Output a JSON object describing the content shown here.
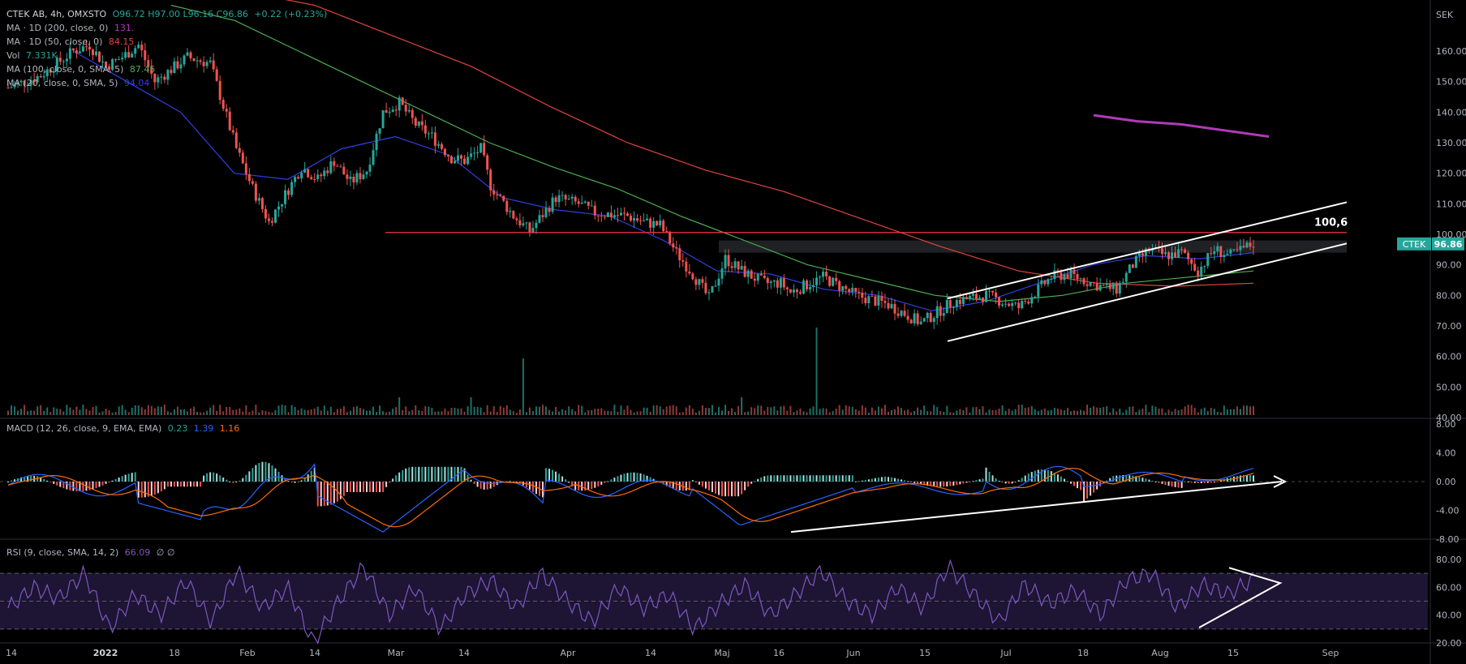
{
  "main_legend": {
    "symbol": "CTEK AB, 4h, OMXSTO",
    "ohlc": "O96.72 H97.00 L96.16 C96.86",
    "change": "+0.22 (+0.23%)",
    "indicators": [
      {
        "label": "MA · 1D (200, close, 0)",
        "value": "131.",
        "color": "#b03ab8"
      },
      {
        "label": "MA · 1D (50, close, 0)",
        "value": "84.15",
        "color": "#e0443e"
      },
      {
        "label": "Vol",
        "value": "7.331K",
        "color": "#26a69a"
      },
      {
        "label": "MA (100, close, 0, SMA, 5)",
        "value": "87.45",
        "color": "#4caf50"
      },
      {
        "label": "MA (20, close, 0, SMA, 5)",
        "value": "94.04",
        "color": "#3040e0"
      }
    ]
  },
  "macd_legend": {
    "label": "MACD (12, 26, close, 9, EMA, EMA)",
    "hist": "0.23",
    "macd": "1.39",
    "signal": "1.16"
  },
  "rsi_legend": {
    "label": "RSI (9, close, SMA, 14, 2)",
    "value": "66.09",
    "extra": "∅ ∅"
  },
  "currency": "SEK",
  "price_tag": {
    "symbol": "CTEK",
    "price": "96.86"
  },
  "annotation": "100,6",
  "colors": {
    "up": "#26a69a",
    "down": "#ef5350",
    "ma20": "#3040e0",
    "ma100": "#4caf50",
    "ma50": "#e0443e",
    "ma200": "#b03ab8"
  },
  "chart_data": {
    "type": "line",
    "price_axis": {
      "ticks": [
        "160.00",
        "150.00",
        "140.00",
        "130.00",
        "120.00",
        "110.00",
        "100.00",
        "90.00",
        "80.00",
        "70.00",
        "60.00",
        "50.00",
        "40.00"
      ],
      "range": [
        40,
        166
      ]
    },
    "macd_axis": {
      "ticks": [
        "8.00",
        "4.00",
        "0.00",
        "-4.00",
        "-8.00"
      ],
      "range": [
        -8.5,
        8
      ]
    },
    "rsi_axis": {
      "ticks": [
        "80.00",
        "60.00",
        "40.00",
        "20.00"
      ],
      "range": [
        16,
        84
      ],
      "bands": [
        30,
        50,
        70
      ]
    },
    "time_axis": {
      "labels": [
        "14",
        "2022",
        "18",
        "Feb",
        "14",
        "Mar",
        "14",
        "Apr",
        "14",
        "Maj",
        "16",
        "Jun",
        "15",
        "Jul",
        "18",
        "Aug",
        "15",
        "Sep"
      ]
    },
    "price_series": {
      "name": "close",
      "t": [
        0,
        10,
        20,
        25,
        30,
        35,
        40,
        45,
        50,
        55,
        62,
        66,
        70,
        75,
        80,
        90,
        95,
        100,
        105,
        110,
        115,
        120,
        125,
        130,
        136,
        140,
        145,
        148,
        155,
        160,
        168,
        175,
        180,
        190,
        195,
        200,
        205,
        210,
        215,
        220,
        225,
        232,
        237,
        240,
        250,
        260,
        270,
        280,
        290,
        300,
        310,
        320,
        325,
        335,
        340,
        345,
        350,
        355,
        360,
        365,
        370,
        375,
        382
      ],
      "close": [
        148,
        152,
        160,
        162,
        155,
        158,
        162,
        150,
        154,
        158,
        156,
        142,
        128,
        115,
        104,
        122,
        118,
        124,
        117,
        121,
        140,
        143,
        136,
        132,
        125,
        124,
        128,
        116,
        106,
        101,
        112,
        110,
        107,
        106,
        104,
        103,
        94,
        87,
        79,
        92,
        88,
        84,
        84,
        81,
        86,
        80,
        77,
        71,
        78,
        80,
        76,
        86,
        87,
        83,
        82,
        90,
        95,
        93,
        94,
        88,
        95,
        93,
        97
      ]
    },
    "ma20": [
      160,
      150,
      140,
      120,
      118,
      128,
      132,
      126,
      112,
      108,
      106,
      98,
      88,
      87,
      82,
      80,
      75,
      78,
      84,
      90,
      93,
      92,
      94
    ],
    "ma100": [
      175,
      170,
      160,
      150,
      140,
      130,
      122,
      115,
      106,
      98,
      90,
      85,
      80,
      78,
      80,
      84,
      86,
      88
    ],
    "ma50": [
      180,
      175,
      165,
      155,
      142,
      130,
      121,
      114,
      105,
      96,
      88,
      84,
      83,
      84
    ],
    "ma200": [
      139,
      137,
      136,
      134,
      132
    ],
    "rsi": [
      45,
      60,
      52,
      70,
      30,
      55,
      40,
      65,
      35,
      72,
      45,
      60,
      20,
      50,
      75,
      40,
      60,
      30,
      55,
      65,
      45,
      70,
      50,
      35,
      60,
      45,
      55,
      30,
      48,
      62,
      40,
      55,
      72,
      50,
      40,
      60,
      45,
      75,
      55,
      35,
      62,
      48,
      58,
      40,
      65,
      70,
      45,
      62,
      55,
      66
    ],
    "resistance_level": 100.6,
    "value_label": "100,6"
  }
}
